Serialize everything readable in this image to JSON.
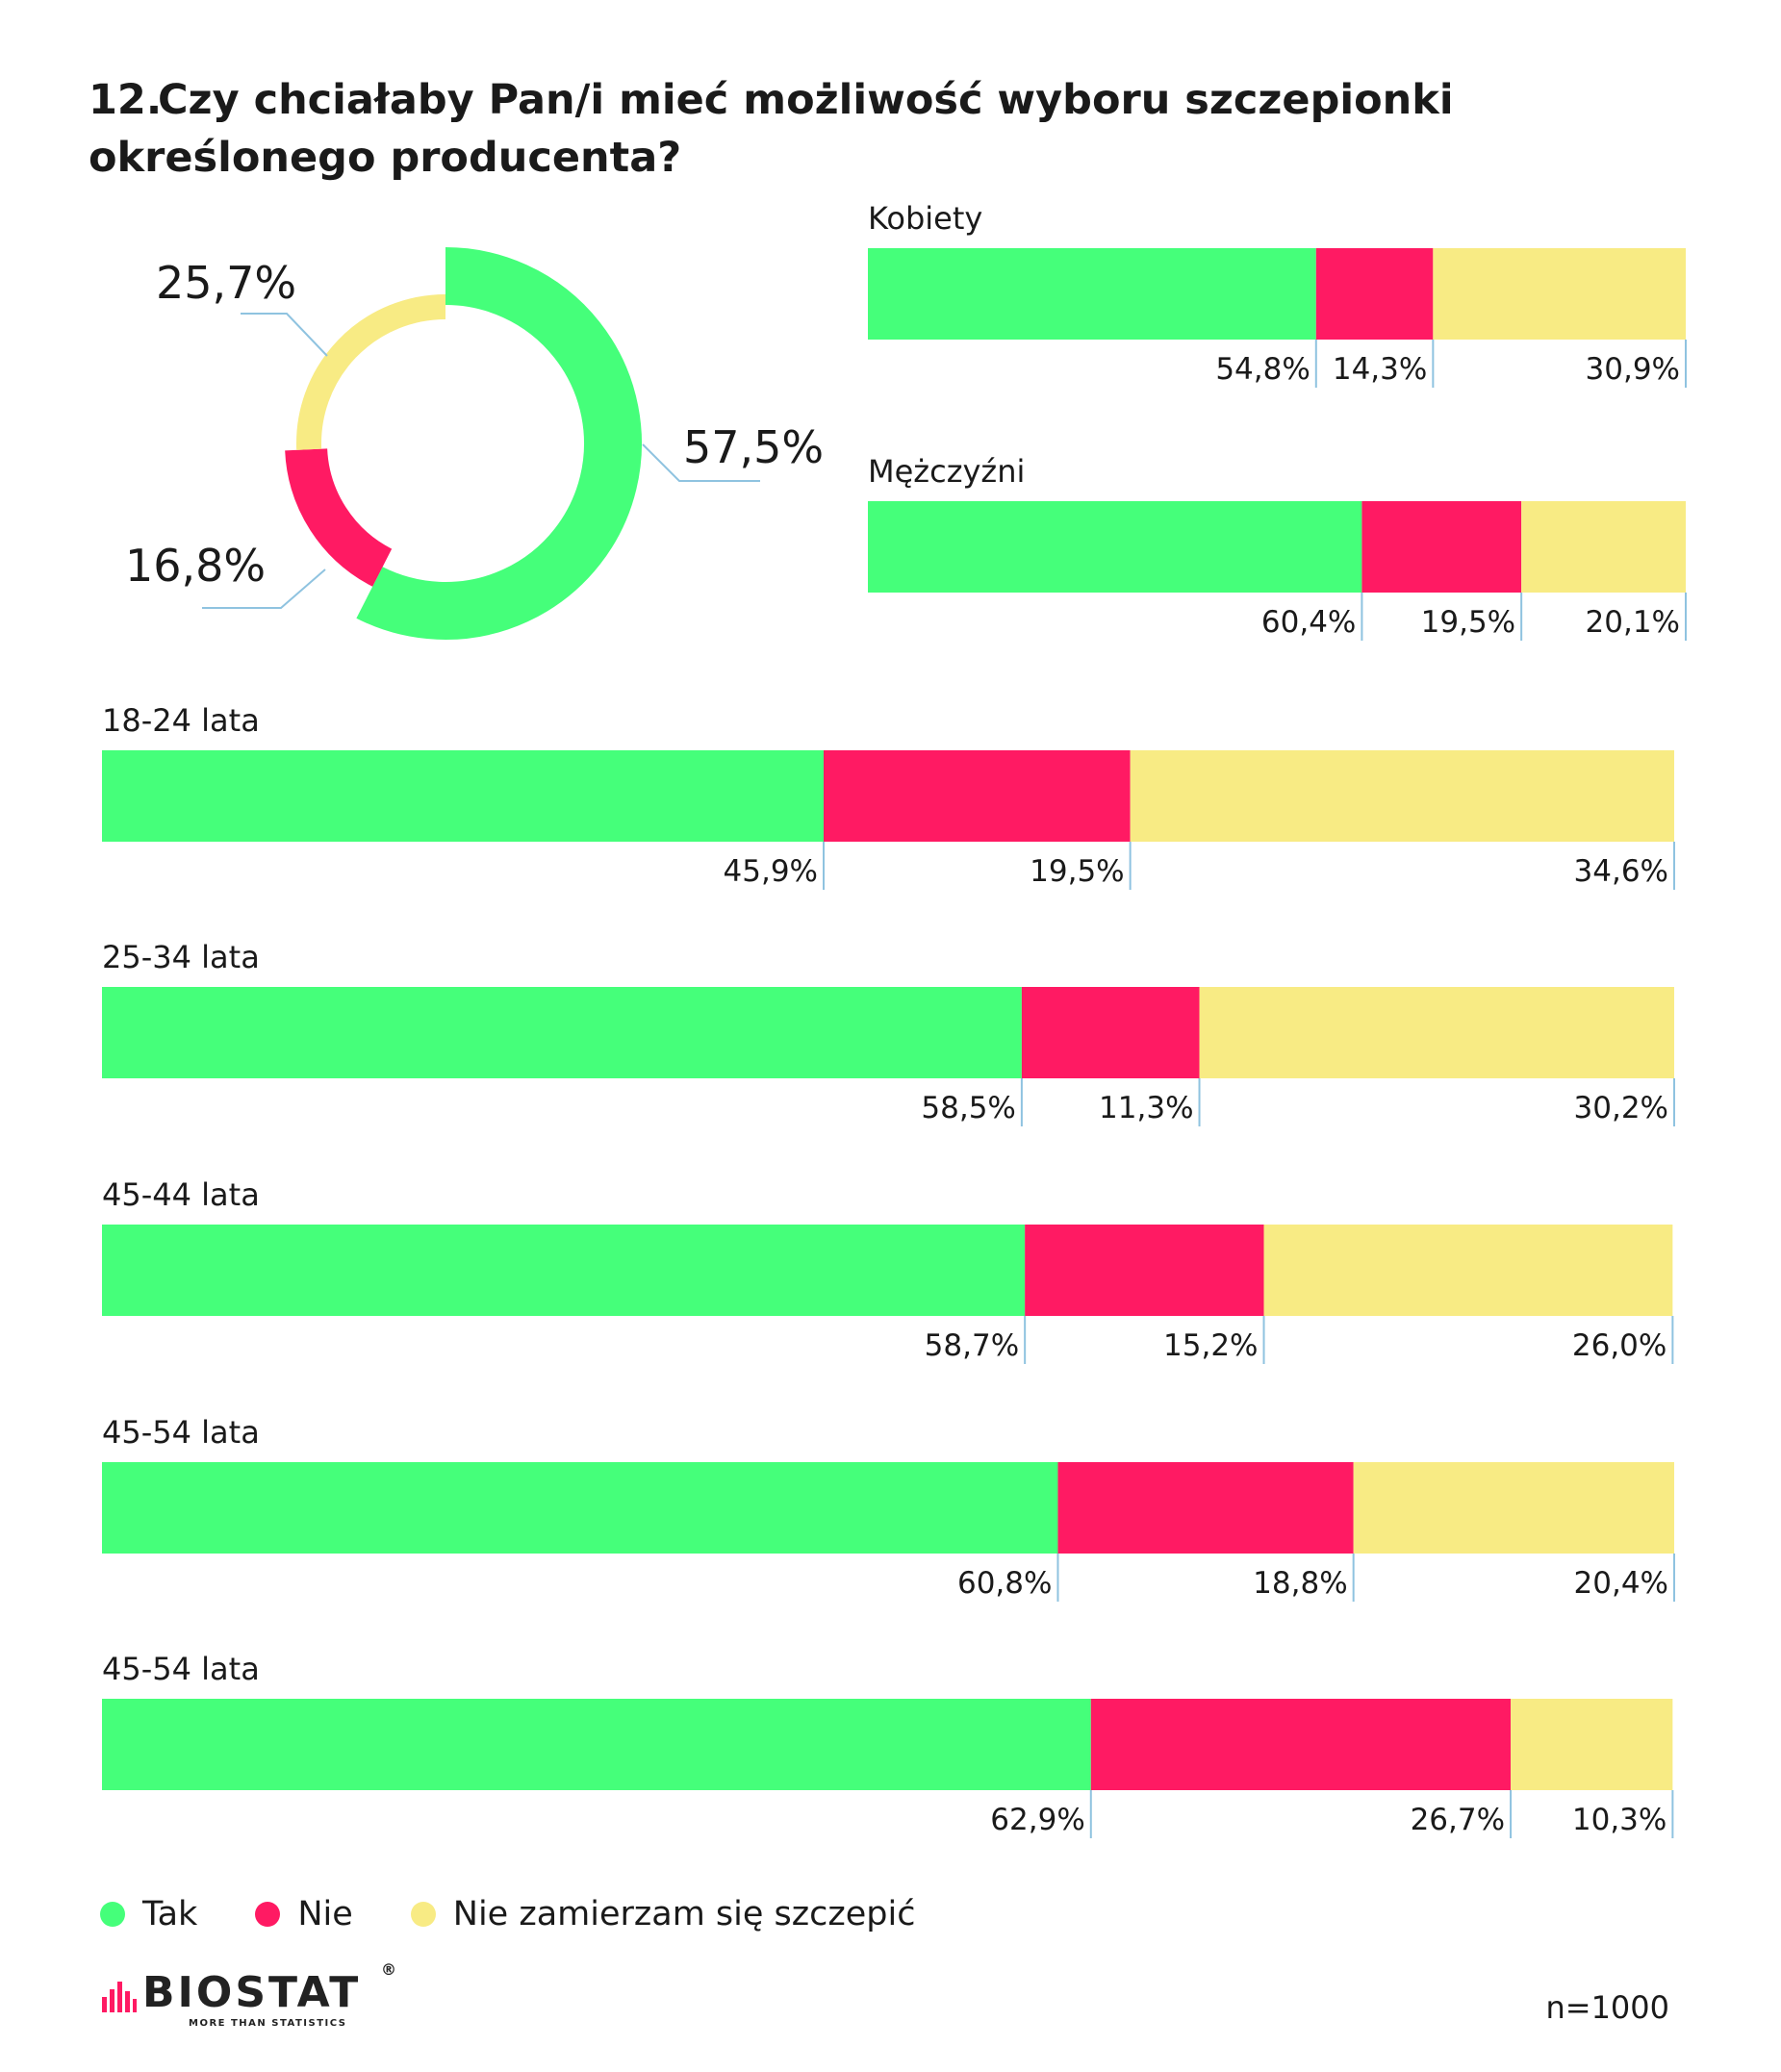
{
  "title": {
    "number": "12.",
    "text": "Czy chciałaby Pan/i mieć możliwość wyboru szczepionki określonego producenta?"
  },
  "colors": {
    "tak": "#45FF7A",
    "nie": "#FF1A63",
    "nz": "#F8EB84",
    "leader": "#8fc3e0"
  },
  "chart_data": [
    {
      "type": "pie",
      "donut": true,
      "categories": [
        "Tak",
        "Nie",
        "Nie zamierzam się szczepić"
      ],
      "values": [
        57.5,
        16.8,
        25.7
      ],
      "labels": [
        "57,5%",
        "16,8%",
        "25,7%"
      ]
    },
    {
      "type": "bar",
      "orientation": "horizontal",
      "stacked": true,
      "categories": [
        "Kobiety",
        "Mężczyźni"
      ],
      "series": [
        {
          "name": "Tak",
          "values": [
            54.8,
            60.4
          ],
          "labels": [
            "54,8%",
            "60,4%"
          ]
        },
        {
          "name": "Nie",
          "values": [
            14.3,
            19.5
          ],
          "labels": [
            "14,3%",
            "19,5%"
          ]
        },
        {
          "name": "Nie zamierzam się szczepić",
          "values": [
            30.9,
            20.1
          ],
          "labels": [
            "30,9%",
            "20,1%"
          ]
        }
      ]
    },
    {
      "type": "bar",
      "orientation": "horizontal",
      "stacked": true,
      "categories": [
        "18-24 lata",
        "25-34 lata",
        "45-44 lata",
        "45-54 lata",
        "45-54 lata"
      ],
      "series": [
        {
          "name": "Tak",
          "values": [
            45.9,
            58.5,
            58.7,
            60.8,
            62.9
          ],
          "labels": [
            "45,9%",
            "58,5%",
            "58,7%",
            "60,8%",
            "62,9%"
          ]
        },
        {
          "name": "Nie",
          "values": [
            19.5,
            11.3,
            15.2,
            18.8,
            26.7
          ],
          "labels": [
            "19,5%",
            "11,3%",
            "15,2%",
            "18,8%",
            "26,7%"
          ]
        },
        {
          "name": "Nie zamierzam się szczepić",
          "values": [
            34.6,
            30.2,
            26.0,
            20.4,
            10.3
          ],
          "labels": [
            "34,6%",
            "30,2%",
            "26,0%",
            "20,4%",
            "10,3%"
          ]
        }
      ]
    }
  ],
  "legend": [
    {
      "label": "Tak",
      "color": "#45FF7A"
    },
    {
      "label": "Nie",
      "color": "#FF1A63"
    },
    {
      "label": "Nie zamierzam się szczepić",
      "color": "#F8EB84"
    }
  ],
  "logo": {
    "name": "BIOSTAT",
    "reg": "®",
    "tagline": "MORE THAN STATISTICS"
  },
  "sample": "n=1000"
}
